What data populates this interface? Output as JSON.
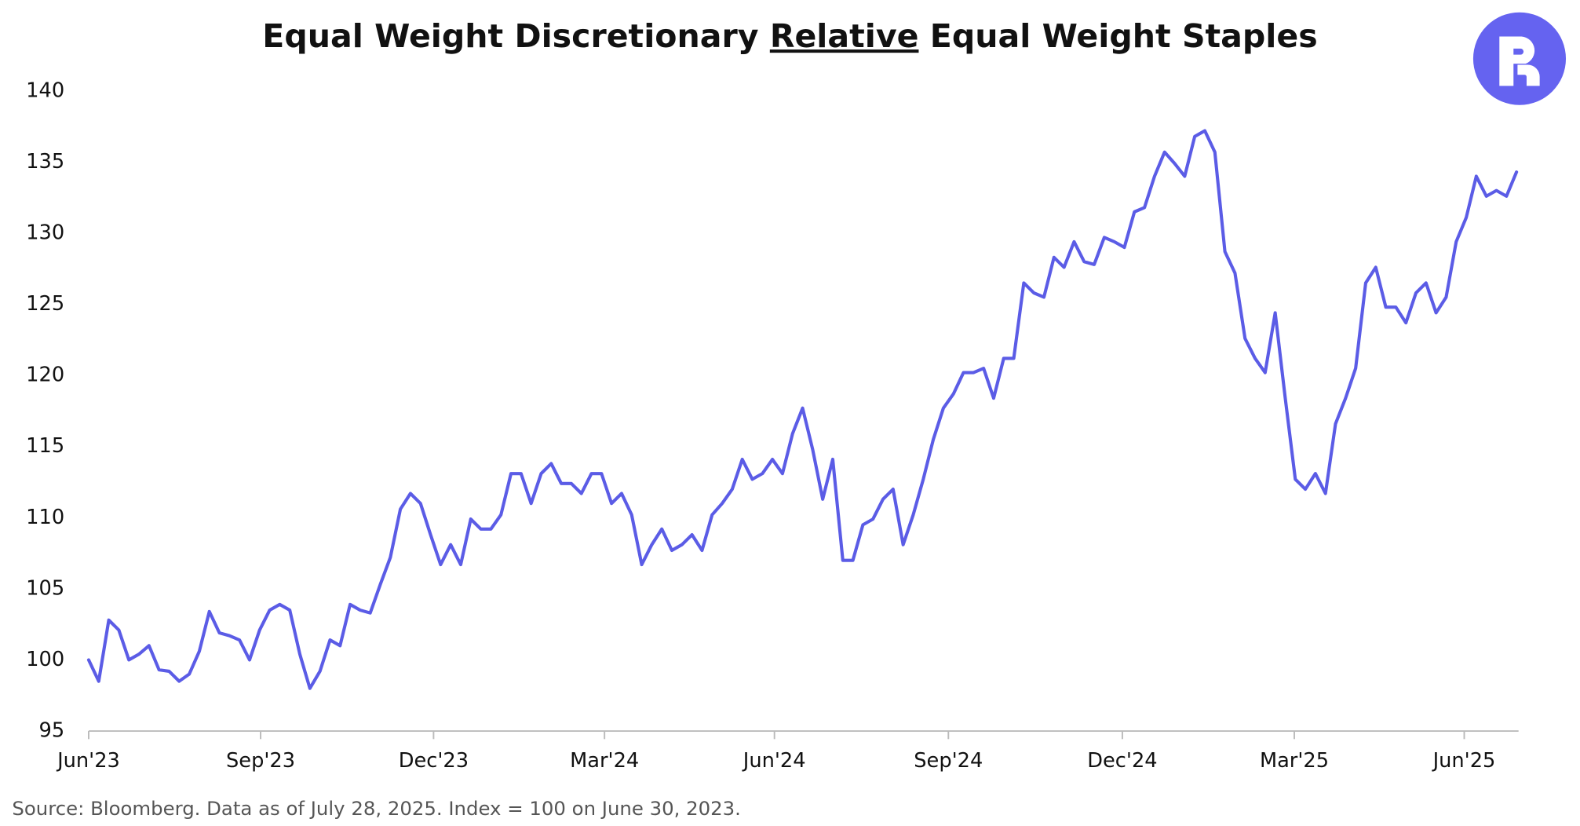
{
  "chart_data": {
    "type": "line",
    "title": {
      "before": "Equal Weight Discretionary ",
      "underlined": "Relative",
      "after": " Equal Weight Staples"
    },
    "source": "Source: Bloomberg. Data as of July 28, 2025. Index = 100 on June 30, 2023.",
    "color": "#5b5ce6",
    "values": [
      100.0,
      98.5,
      102.8,
      102.1,
      100.0,
      100.4,
      101.0,
      99.3,
      99.2,
      98.5,
      99.0,
      100.6,
      103.4,
      101.9,
      101.7,
      101.4,
      100.0,
      102.1,
      103.5,
      103.9,
      103.5,
      100.4,
      98.0,
      99.2,
      101.4,
      101.0,
      103.9,
      103.5,
      103.3,
      105.3,
      107.2,
      110.6,
      111.7,
      111.0,
      108.8,
      106.7,
      108.1,
      106.7,
      109.9,
      109.2,
      109.2,
      110.2,
      113.1,
      113.1,
      111.0,
      113.1,
      113.8,
      112.4,
      112.4,
      111.7,
      113.1,
      113.1,
      111.0,
      111.7,
      110.2,
      106.7,
      108.1,
      109.2,
      107.7,
      108.1,
      108.8,
      107.7,
      110.2,
      111.0,
      112.0,
      114.1,
      112.7,
      113.1,
      114.1,
      113.1,
      115.9,
      117.7,
      114.8,
      111.3,
      114.1,
      107.0,
      107.0,
      109.5,
      109.9,
      111.3,
      112.0,
      108.1,
      110.2,
      112.7,
      115.5,
      117.7,
      118.7,
      120.2,
      120.2,
      120.5,
      118.4,
      121.2,
      121.2,
      126.5,
      125.8,
      125.5,
      128.3,
      127.6,
      129.4,
      128.0,
      127.8,
      129.7,
      129.4,
      129.0,
      131.5,
      131.8,
      134.0,
      135.7,
      134.9,
      134.0,
      136.8,
      137.2,
      135.7,
      128.7,
      127.2,
      122.6,
      121.2,
      120.2,
      124.4,
      118.4,
      112.7,
      112.0,
      113.1,
      111.7,
      116.6,
      118.4,
      120.5,
      126.5,
      127.6,
      124.8,
      124.8,
      123.7,
      125.8,
      126.5,
      124.4,
      125.5,
      129.4,
      131.1,
      134.0,
      132.6,
      133.0,
      132.6,
      134.3
    ],
    "xlim": [
      0,
      142
    ],
    "xticks": [
      {
        "value": 0,
        "label": "Jun'23"
      },
      {
        "value": 17.1,
        "label": "Sep'23"
      },
      {
        "value": 34.3,
        "label": "Dec'23"
      },
      {
        "value": 51.3,
        "label": "Mar'24"
      },
      {
        "value": 68.2,
        "label": "Jun'24"
      },
      {
        "value": 85.5,
        "label": "Sep'24"
      },
      {
        "value": 102.8,
        "label": "Dec'24"
      },
      {
        "value": 119.9,
        "label": "Mar'25"
      },
      {
        "value": 136.8,
        "label": "Jun'25"
      }
    ],
    "ylim": [
      95,
      140
    ],
    "yticks": [
      95,
      100,
      105,
      110,
      115,
      120,
      125,
      130,
      135,
      140
    ],
    "grid": false
  }
}
